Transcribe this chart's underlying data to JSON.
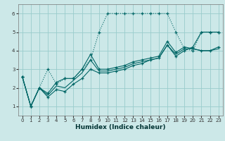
{
  "xlabel": "Humidex (Indice chaleur)",
  "xlim": [
    -0.5,
    23.5
  ],
  "ylim": [
    0.5,
    6.5
  ],
  "xticks": [
    0,
    1,
    2,
    3,
    4,
    5,
    6,
    7,
    8,
    9,
    10,
    11,
    12,
    13,
    14,
    15,
    16,
    17,
    18,
    19,
    20,
    21,
    22,
    23
  ],
  "yticks": [
    1,
    2,
    3,
    4,
    5,
    6
  ],
  "bg_color": "#cce8e8",
  "grid_color": "#99cccc",
  "line_color": "#006666",
  "series_dotted": {
    "x": [
      0,
      1,
      2,
      3,
      4,
      5,
      6,
      7,
      8,
      9,
      10,
      11,
      12,
      13,
      14,
      15,
      16,
      17,
      18,
      19,
      20,
      21,
      22,
      23
    ],
    "y": [
      2.6,
      1.0,
      2.0,
      3.0,
      2.2,
      2.5,
      2.5,
      3.0,
      3.5,
      5.0,
      6.0,
      6.0,
      6.0,
      6.0,
      6.0,
      6.0,
      6.0,
      6.0,
      5.0,
      4.1,
      4.0,
      5.0,
      5.0,
      5.0
    ]
  },
  "series1": {
    "x": [
      0,
      1,
      2,
      3,
      4,
      5,
      6,
      7,
      8,
      9,
      10,
      11,
      12,
      13,
      14,
      15,
      16,
      17,
      18,
      19,
      20,
      21,
      22,
      23
    ],
    "y": [
      2.6,
      1.0,
      2.0,
      1.7,
      2.3,
      2.5,
      2.5,
      3.0,
      3.8,
      3.0,
      3.0,
      3.1,
      3.2,
      3.4,
      3.5,
      3.6,
      3.7,
      4.5,
      3.9,
      4.2,
      4.1,
      4.0,
      4.0,
      4.2
    ]
  },
  "series2": {
    "x": [
      0,
      1,
      2,
      3,
      4,
      5,
      6,
      7,
      8,
      9,
      10,
      11,
      12,
      13,
      14,
      15,
      16,
      17,
      18,
      19,
      20,
      21,
      22,
      23
    ],
    "y": [
      2.6,
      1.0,
      2.0,
      1.6,
      2.1,
      2.0,
      2.4,
      2.8,
      3.5,
      2.9,
      2.9,
      3.0,
      3.1,
      3.3,
      3.4,
      3.5,
      3.6,
      4.3,
      3.8,
      4.1,
      4.1,
      4.0,
      4.0,
      4.1
    ]
  },
  "series3": {
    "x": [
      0,
      1,
      2,
      3,
      4,
      5,
      6,
      7,
      8,
      9,
      10,
      11,
      12,
      13,
      14,
      15,
      16,
      17,
      18,
      19,
      20,
      21,
      22,
      23
    ],
    "y": [
      2.6,
      1.0,
      2.0,
      1.5,
      1.9,
      1.8,
      2.2,
      2.5,
      3.0,
      2.8,
      2.8,
      2.9,
      3.0,
      3.2,
      3.3,
      3.5,
      3.6,
      4.3,
      3.7,
      4.0,
      4.2,
      5.0,
      5.0,
      5.0
    ]
  }
}
